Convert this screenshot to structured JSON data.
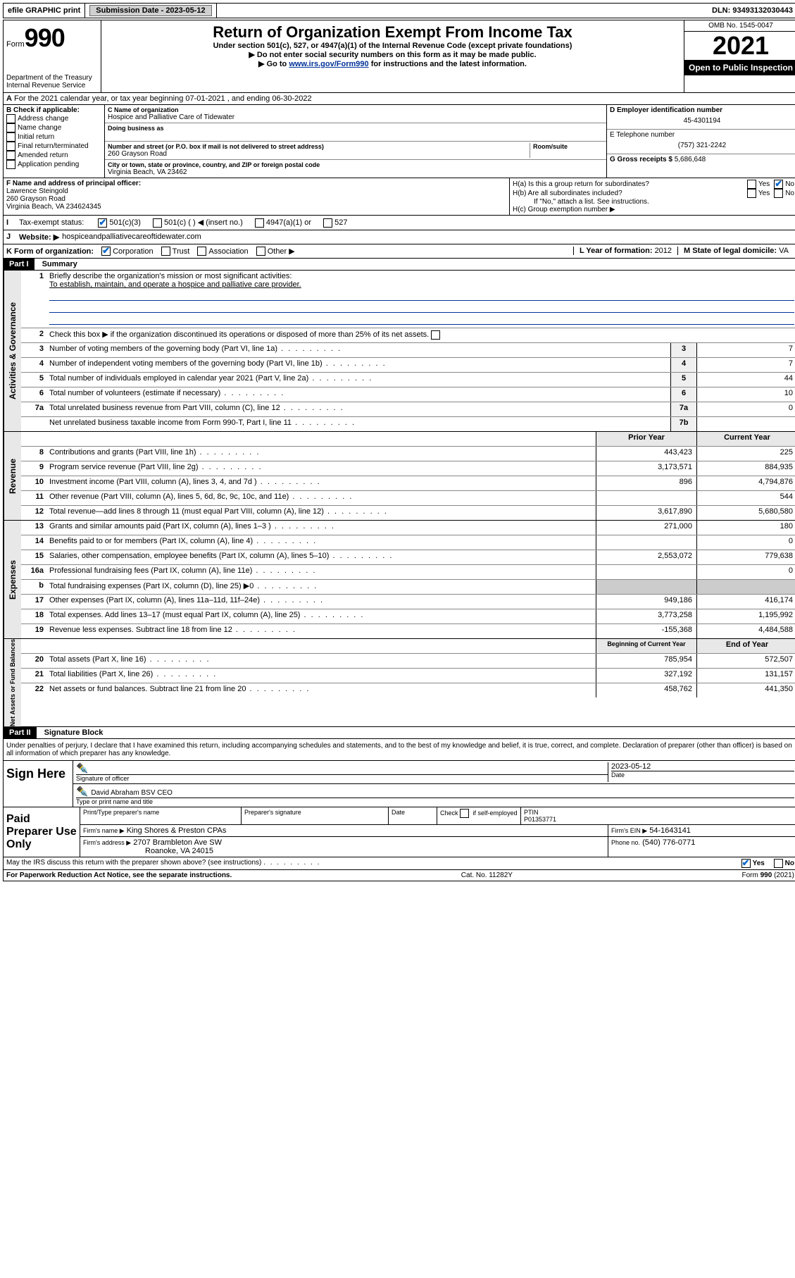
{
  "top": {
    "efile": "efile GRAPHIC print",
    "submission_label": "Submission Date - 2023-05-12",
    "dln": "DLN: 93493132030443"
  },
  "header": {
    "form_prefix": "Form",
    "form_number": "990",
    "dept": "Department of the Treasury",
    "irs": "Internal Revenue Service",
    "title": "Return of Organization Exempt From Income Tax",
    "subtitle": "Under section 501(c), 527, or 4947(a)(1) of the Internal Revenue Code (except private foundations)",
    "instr1": "▶ Do not enter social security numbers on this form as it may be made public.",
    "instr2_pre": "▶ Go to ",
    "instr2_link": "www.irs.gov/Form990",
    "instr2_post": " for instructions and the latest information.",
    "omb": "OMB No. 1545-0047",
    "year": "2021",
    "open": "Open to Public Inspection"
  },
  "line_a": "For the 2021 calendar year, or tax year beginning 07-01-2021   , and ending 06-30-2022",
  "box_b": {
    "label": "B Check if applicable:",
    "items": [
      "Address change",
      "Name change",
      "Initial return",
      "Final return/terminated",
      "Amended return",
      "Application pending"
    ]
  },
  "box_c": {
    "name_label": "C Name of organization",
    "name": "Hospice and Palliative Care of Tidewater",
    "dba_label": "Doing business as",
    "addr_label": "Number and street (or P.O. box if mail is not delivered to street address)",
    "room_label": "Room/suite",
    "addr": "260 Grayson Road",
    "city_label": "City or town, state or province, country, and ZIP or foreign postal code",
    "city": "Virginia Beach, VA  23462"
  },
  "box_d": {
    "label": "D Employer identification number",
    "value": "45-4301194"
  },
  "box_e": {
    "label": "E Telephone number",
    "value": "(757) 321-2242"
  },
  "box_g": {
    "label": "G Gross receipts $",
    "value": "5,686,648"
  },
  "box_f": {
    "label": "F  Name and address of principal officer:",
    "name": "Lawrence Steingold",
    "addr1": "260 Grayson Road",
    "addr2": "Virginia Beach, VA  234624345"
  },
  "box_h": {
    "ha": "H(a)  Is this a group return for subordinates?",
    "hb": "H(b)  Are all subordinates included?",
    "hb_note": "If \"No,\" attach a list. See instructions.",
    "hc": "H(c)  Group exemption number ▶",
    "yes": "Yes",
    "no": "No"
  },
  "box_i": {
    "label": "Tax-exempt status:",
    "opts": [
      "501(c)(3)",
      "501(c) (  ) ◀ (insert no.)",
      "4947(a)(1) or",
      "527"
    ]
  },
  "box_j": {
    "label": "Website: ▶",
    "value": "hospiceandpalliativecareoftidewater.com"
  },
  "box_k": {
    "label": "K Form of organization:",
    "opts": [
      "Corporation",
      "Trust",
      "Association",
      "Other ▶"
    ]
  },
  "box_l": {
    "label": "L Year of formation:",
    "value": "2012"
  },
  "box_m": {
    "label": "M State of legal domicile:",
    "value": "VA"
  },
  "part1": {
    "header": "Part I",
    "title": "Summary"
  },
  "summary": {
    "l1": "Briefly describe the organization's mission or most significant activities:",
    "l1_text": "To establish, maintain, and operate a hospice and palliative care provider.",
    "l2": "Check this box ▶       if the organization discontinued its operations or disposed of more than 25% of its net assets.",
    "rows_g": [
      {
        "n": "3",
        "d": "Number of voting members of the governing body (Part VI, line 1a)",
        "b": "3",
        "v": "7"
      },
      {
        "n": "4",
        "d": "Number of independent voting members of the governing body (Part VI, line 1b)",
        "b": "4",
        "v": "7"
      },
      {
        "n": "5",
        "d": "Total number of individuals employed in calendar year 2021 (Part V, line 2a)",
        "b": "5",
        "v": "44"
      },
      {
        "n": "6",
        "d": "Total number of volunteers (estimate if necessary)",
        "b": "6",
        "v": "10"
      },
      {
        "n": "7a",
        "d": "Total unrelated business revenue from Part VIII, column (C), line 12",
        "b": "7a",
        "v": "0"
      },
      {
        "n": "",
        "d": "Net unrelated business taxable income from Form 990-T, Part I, line 11",
        "b": "7b",
        "v": ""
      }
    ],
    "col_prior": "Prior Year",
    "col_current": "Current Year",
    "col_begin": "Beginning of Current Year",
    "col_end": "End of Year",
    "rows_r": [
      {
        "n": "8",
        "d": "Contributions and grants (Part VIII, line 1h)",
        "p": "443,423",
        "c": "225"
      },
      {
        "n": "9",
        "d": "Program service revenue (Part VIII, line 2g)",
        "p": "3,173,571",
        "c": "884,935"
      },
      {
        "n": "10",
        "d": "Investment income (Part VIII, column (A), lines 3, 4, and 7d )",
        "p": "896",
        "c": "4,794,876"
      },
      {
        "n": "11",
        "d": "Other revenue (Part VIII, column (A), lines 5, 6d, 8c, 9c, 10c, and 11e)",
        "p": "",
        "c": "544"
      },
      {
        "n": "12",
        "d": "Total revenue—add lines 8 through 11 (must equal Part VIII, column (A), line 12)",
        "p": "3,617,890",
        "c": "5,680,580"
      }
    ],
    "rows_e": [
      {
        "n": "13",
        "d": "Grants and similar amounts paid (Part IX, column (A), lines 1–3 )",
        "p": "271,000",
        "c": "180"
      },
      {
        "n": "14",
        "d": "Benefits paid to or for members (Part IX, column (A), line 4)",
        "p": "",
        "c": "0"
      },
      {
        "n": "15",
        "d": "Salaries, other compensation, employee benefits (Part IX, column (A), lines 5–10)",
        "p": "2,553,072",
        "c": "779,638"
      },
      {
        "n": "16a",
        "d": "Professional fundraising fees (Part IX, column (A), line 11e)",
        "p": "",
        "c": "0"
      },
      {
        "n": "b",
        "d": "Total fundraising expenses (Part IX, column (D), line 25) ▶0",
        "p": "shaded",
        "c": "shaded"
      },
      {
        "n": "17",
        "d": "Other expenses (Part IX, column (A), lines 11a–11d, 11f–24e)",
        "p": "949,186",
        "c": "416,174"
      },
      {
        "n": "18",
        "d": "Total expenses. Add lines 13–17 (must equal Part IX, column (A), line 25)",
        "p": "3,773,258",
        "c": "1,195,992"
      },
      {
        "n": "19",
        "d": "Revenue less expenses. Subtract line 18 from line 12",
        "p": "-155,368",
        "c": "4,484,588"
      }
    ],
    "rows_n": [
      {
        "n": "20",
        "d": "Total assets (Part X, line 16)",
        "p": "785,954",
        "c": "572,507"
      },
      {
        "n": "21",
        "d": "Total liabilities (Part X, line 26)",
        "p": "327,192",
        "c": "131,157"
      },
      {
        "n": "22",
        "d": "Net assets or fund balances. Subtract line 21 from line 20",
        "p": "458,762",
        "c": "441,350"
      }
    ]
  },
  "vlabels": {
    "g": "Activities & Governance",
    "r": "Revenue",
    "e": "Expenses",
    "n": "Net Assets or Fund Balances"
  },
  "part2": {
    "header": "Part II",
    "title": "Signature Block"
  },
  "sig": {
    "decl": "Under penalties of perjury, I declare that I have examined this return, including accompanying schedules and statements, and to the best of my knowledge and belief, it is true, correct, and complete. Declaration of preparer (other than officer) is based on all information of which preparer has any knowledge.",
    "sign_here": "Sign Here",
    "sig_officer": "Signature of officer",
    "date_label": "Date",
    "date": "2023-05-12",
    "officer_name": "David Abraham BSV CEO",
    "type_name": "Type or print name and title"
  },
  "prep": {
    "label": "Paid Preparer Use Only",
    "h1": "Print/Type preparer's name",
    "h2": "Preparer's signature",
    "h3": "Date",
    "h4_pre": "Check",
    "h4_post": "if self-employed",
    "ptin_label": "PTIN",
    "ptin": "P01353771",
    "firm_name_label": "Firm's name    ▶",
    "firm_name": "King Shores & Preston CPAs",
    "firm_ein_label": "Firm's EIN ▶",
    "firm_ein": "54-1643141",
    "firm_addr_label": "Firm's address ▶",
    "firm_addr1": "2707 Brambleton Ave SW",
    "firm_addr2": "Roanoke, VA  24015",
    "phone_label": "Phone no.",
    "phone": "(540) 776-0771"
  },
  "footer": {
    "discuss": "May the IRS discuss this return with the preparer shown above? (see instructions)",
    "yes": "Yes",
    "no": "No",
    "paperwork": "For Paperwork Reduction Act Notice, see the separate instructions.",
    "cat": "Cat. No. 11282Y",
    "form": "Form 990 (2021)"
  }
}
